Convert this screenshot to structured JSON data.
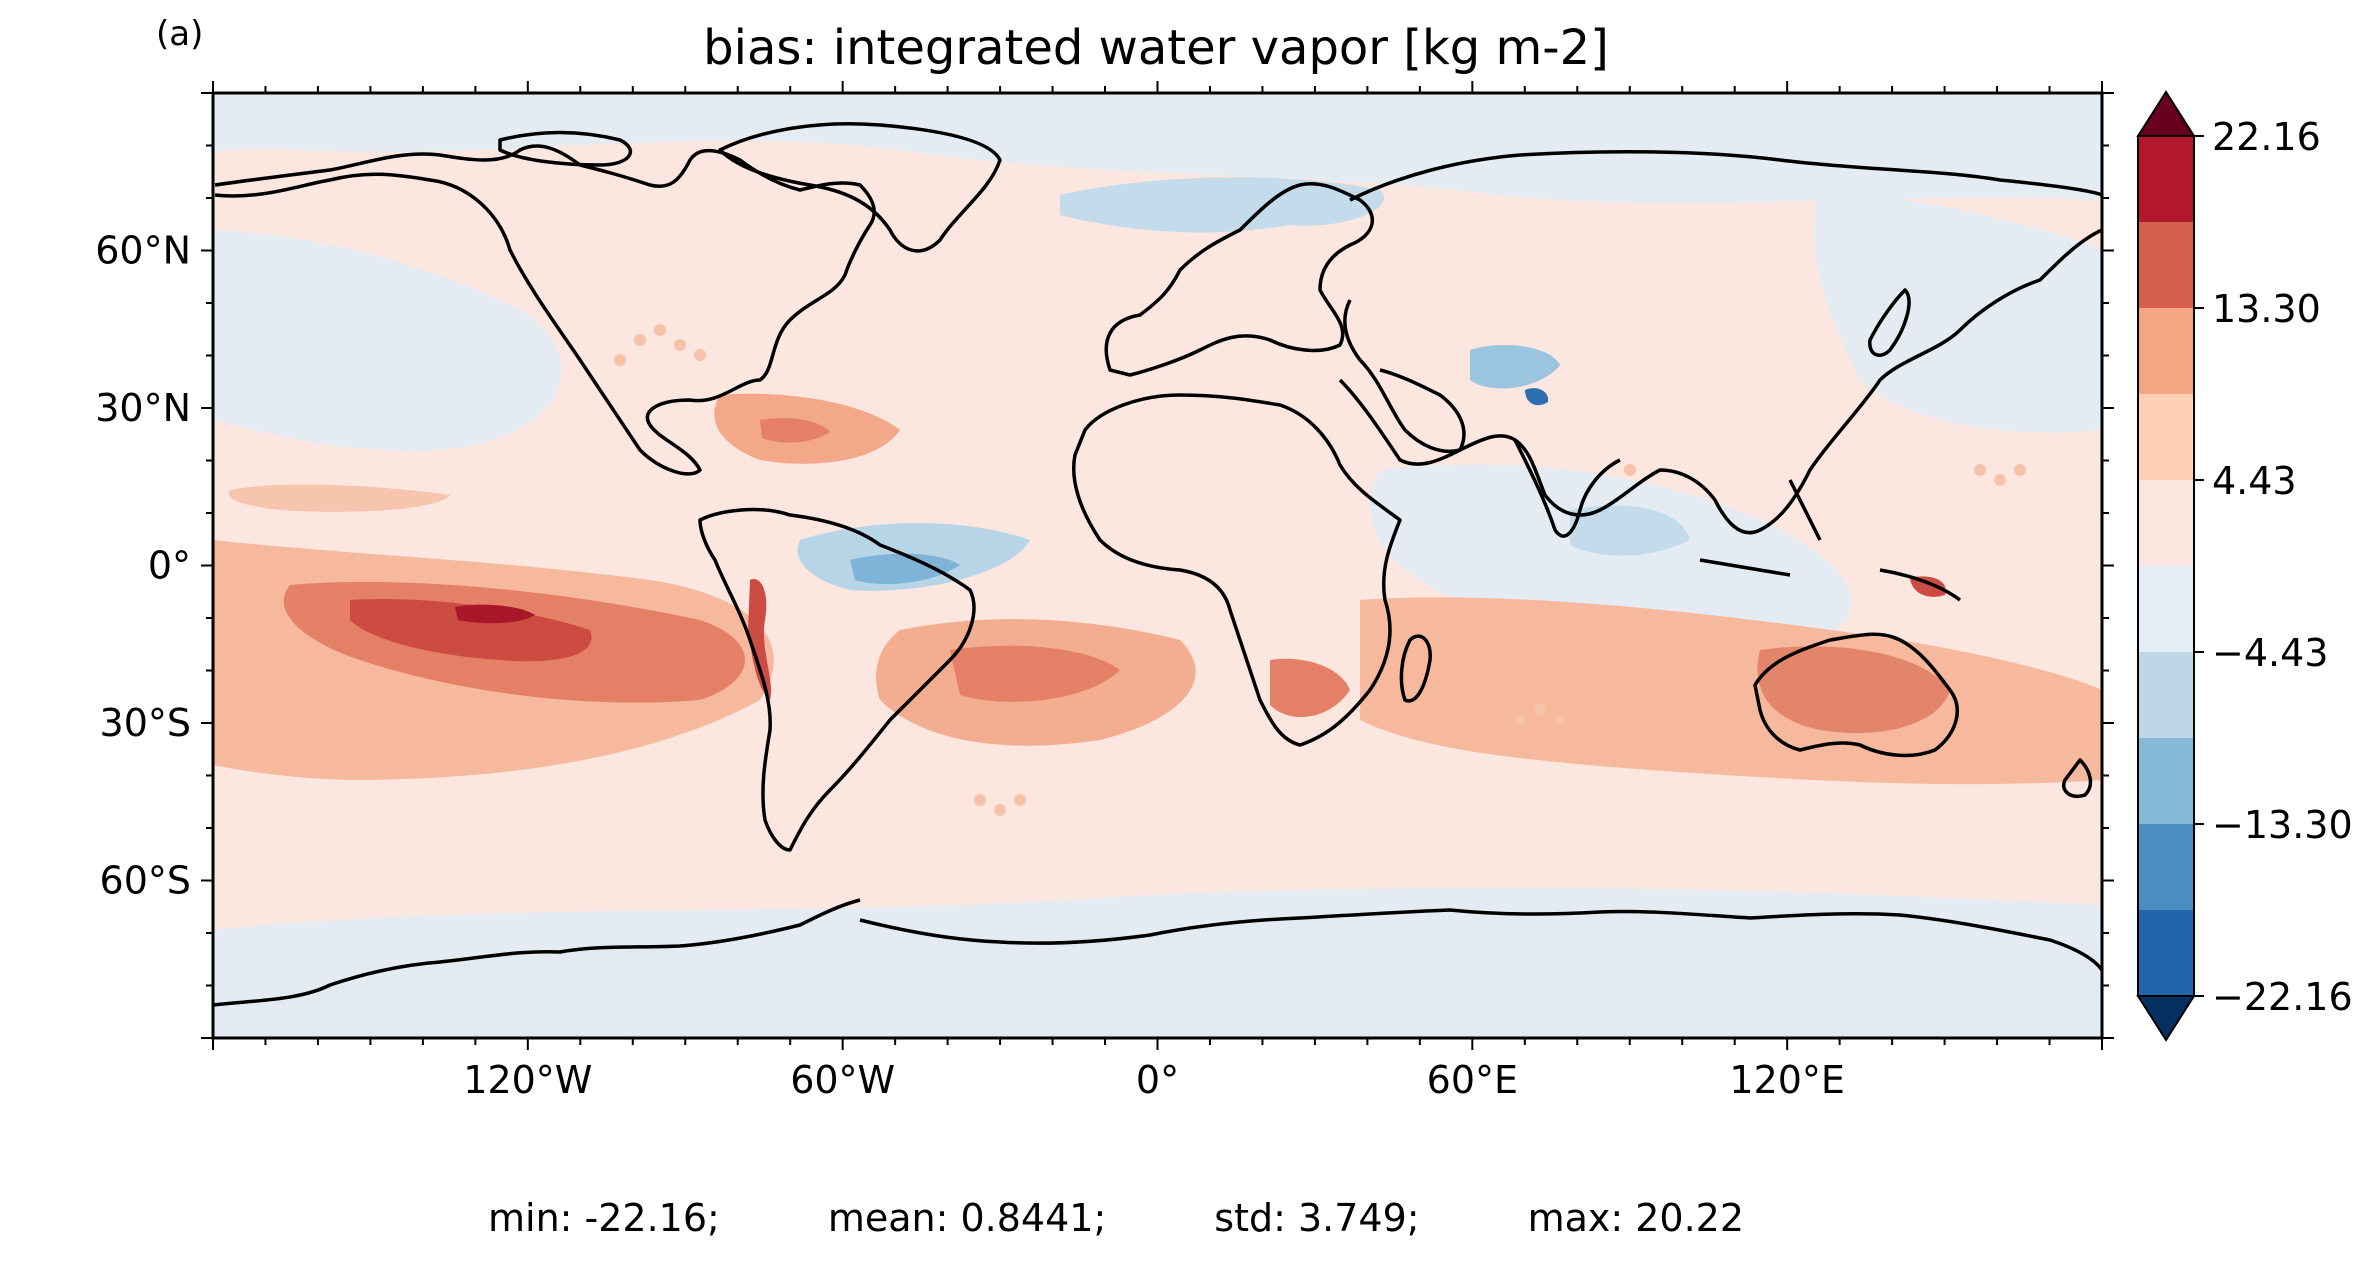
{
  "panel_label": "(a)",
  "title": "bias: integrated water vapor [kg m-2]",
  "map": {
    "projection": "PlateCarree",
    "lon_range": [
      -180,
      180
    ],
    "lat_range": [
      -90,
      90
    ],
    "lon_ticks": [
      {
        "value": -120,
        "label": "120°W"
      },
      {
        "value": -60,
        "label": "60°W"
      },
      {
        "value": 0,
        "label": "0°"
      },
      {
        "value": 60,
        "label": "60°E"
      },
      {
        "value": 120,
        "label": "120°E"
      }
    ],
    "lat_ticks": [
      {
        "value": 60,
        "label": "60°N"
      },
      {
        "value": 30,
        "label": "30°N"
      },
      {
        "value": 0,
        "label": "0°"
      },
      {
        "value": -30,
        "label": "30°S"
      },
      {
        "value": -60,
        "label": "60°S"
      }
    ],
    "coastlines": true,
    "background_bias_class": "small positive / small negative"
  },
  "colorbar": {
    "cmap": "RdBu_r",
    "extend": "both",
    "tick_labels": [
      "22.16",
      "13.30",
      "4.43",
      "−4.43",
      "−13.30",
      "−22.16"
    ],
    "colors": [
      "#67001f",
      "#b2182b",
      "#d6604d",
      "#f4a582",
      "#fdd0b6",
      "#fae6df",
      "#e4ecf4",
      "#bdd7e7",
      "#86b8d7",
      "#4a8ec1",
      "#2166ac",
      "#053061"
    ]
  },
  "stats": {
    "min": "min: -22.16;",
    "mean": "mean: 0.8441;",
    "std": "std: 3.749;",
    "max": "max: 20.22"
  }
}
